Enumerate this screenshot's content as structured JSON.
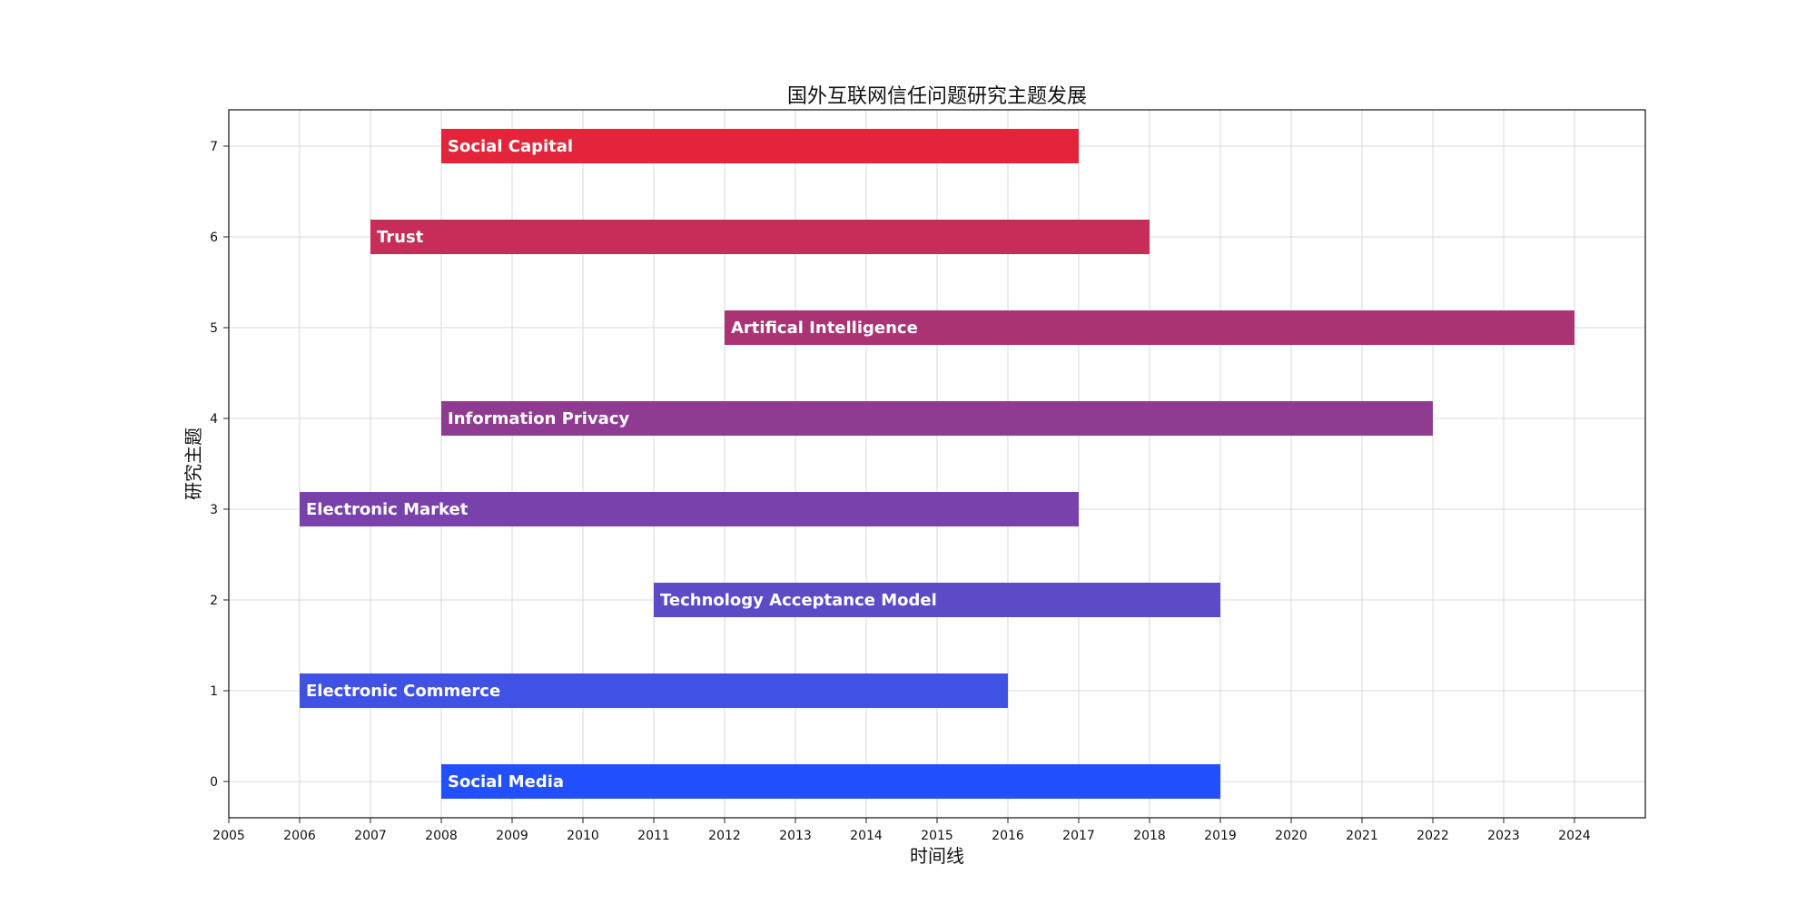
{
  "chart_data": {
    "type": "bar",
    "orientation": "horizontal-timeline",
    "title": "国外互联网信任问题研究主题发展",
    "xlabel": "时间线",
    "ylabel": "研究主题",
    "xlim": [
      2005,
      2025
    ],
    "ylim": [
      -0.4,
      7.4
    ],
    "xticks": [
      2005,
      2006,
      2007,
      2008,
      2009,
      2010,
      2011,
      2012,
      2013,
      2014,
      2015,
      2016,
      2017,
      2018,
      2019,
      2020,
      2021,
      2022,
      2023,
      2024
    ],
    "yticks": [
      0,
      1,
      2,
      3,
      4,
      5,
      6,
      7
    ],
    "grid": true,
    "bars": [
      {
        "y": 0,
        "label": "Social Media",
        "start": 2008,
        "end": 2019,
        "color": "#2250ff"
      },
      {
        "y": 1,
        "label": "Electronic Commerce",
        "start": 2006,
        "end": 2016,
        "color": "#3f52e3"
      },
      {
        "y": 2,
        "label": "Technology Acceptance Model",
        "start": 2011,
        "end": 2019,
        "color": "#5c4bc7"
      },
      {
        "y": 3,
        "label": "Electronic Market",
        "start": 2006,
        "end": 2017,
        "color": "#7841ab"
      },
      {
        "y": 4,
        "label": "Information Privacy",
        "start": 2008,
        "end": 2022,
        "color": "#8f3b91"
      },
      {
        "y": 5,
        "label": "Artifical Intelligence",
        "start": 2012,
        "end": 2024,
        "color": "#aa3373"
      },
      {
        "y": 6,
        "label": "Trust",
        "start": 2007,
        "end": 2018,
        "color": "#c72d57"
      },
      {
        "y": 7,
        "label": "Social Capital",
        "start": 2008,
        "end": 2017,
        "color": "#e2253b"
      }
    ]
  }
}
